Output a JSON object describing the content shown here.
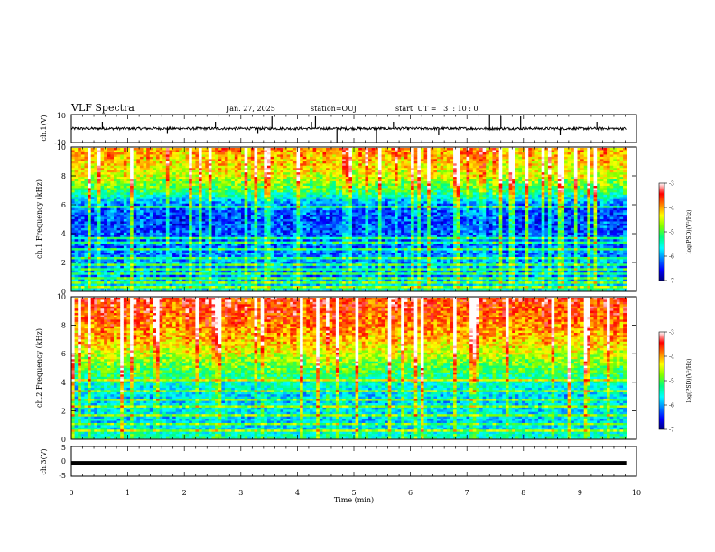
{
  "header": {
    "title": "VLF Spectra",
    "date": "Jan. 27, 2025",
    "station": "station=OUJ",
    "start_ut": "start  UT =   3  : 10 : 0"
  },
  "chart_data": [
    {
      "type": "line",
      "name": "ch1-waveform",
      "ylabel": "ch.1(V)",
      "xlim": [
        0,
        10
      ],
      "ylim": [
        -10,
        10
      ],
      "yticks": [
        "10",
        "-10"
      ],
      "baseline": 0,
      "noise_amplitude": 1,
      "spikes": [
        {
          "t": 0.55,
          "v": 5
        },
        {
          "t": 1.7,
          "v": -4
        },
        {
          "t": 2.55,
          "v": 5
        },
        {
          "t": 3.3,
          "v": -4
        },
        {
          "t": 3.55,
          "v": 9
        },
        {
          "t": 4.25,
          "v": 5
        },
        {
          "t": 4.32,
          "v": 9
        },
        {
          "t": 4.7,
          "v": -10
        },
        {
          "t": 5.4,
          "v": -10
        },
        {
          "t": 5.7,
          "v": 5
        },
        {
          "t": 6.5,
          "v": -5
        },
        {
          "t": 7.4,
          "v": 10
        },
        {
          "t": 7.6,
          "v": 9
        },
        {
          "t": 7.95,
          "v": 9
        },
        {
          "t": 8.65,
          "v": -5
        },
        {
          "t": 9.3,
          "v": 5
        }
      ],
      "data_end": 9.82
    },
    {
      "type": "heatmap",
      "name": "ch1-spectrogram",
      "ylabel": "ch.1 Frequency (kHz)",
      "xlim": [
        0,
        10
      ],
      "ylim": [
        0,
        10
      ],
      "yticks": [
        "0",
        "2",
        "4",
        "6",
        "8",
        "10"
      ],
      "colorbar_label": "log(PSD)(V²/Hz)",
      "colorbar_range": [
        -7,
        -3
      ],
      "colorbar_ticks": [
        "-3",
        "-4",
        "-5",
        "-6",
        "-7"
      ],
      "colormap": [
        "#000080",
        "#0000ff",
        "#0080ff",
        "#00ffff",
        "#00ff80",
        "#80ff00",
        "#ffff00",
        "#ff8000",
        "#ff0000",
        "#ffffff"
      ],
      "band_profile_khz": [
        0,
        1,
        2,
        3,
        4,
        5,
        6,
        7,
        8,
        9,
        10
      ],
      "band_profile_log_psd": [
        -5.6,
        -6.2,
        -6.1,
        -6.3,
        -6.4,
        -6.5,
        -6.3,
        -5.3,
        -4.7,
        -4.4,
        -4.2
      ],
      "tones_khz": [
        0.3,
        0.6,
        0.9,
        1.2,
        1.5,
        1.8,
        2.3,
        2.9,
        3.3,
        3.7,
        5.8
      ],
      "data_end": 9.82
    },
    {
      "type": "heatmap",
      "name": "ch2-spectrogram",
      "ylabel": "ch.2 Frequency (kHz)",
      "xlim": [
        0,
        10
      ],
      "ylim": [
        0,
        10
      ],
      "yticks": [
        "0",
        "2",
        "4",
        "6",
        "8",
        "10"
      ],
      "colorbar_label": "log(PSD)(V²/Hz)",
      "colorbar_range": [
        -7,
        -3
      ],
      "colorbar_ticks": [
        "-3",
        "-4",
        "-5",
        "-6",
        "-7"
      ],
      "colormap": [
        "#000080",
        "#0000ff",
        "#0080ff",
        "#00ffff",
        "#00ff80",
        "#80ff00",
        "#ffff00",
        "#ff8000",
        "#ff0000",
        "#ffffff"
      ],
      "band_profile_khz": [
        0,
        1,
        2,
        3,
        4,
        5,
        6,
        7,
        8,
        9,
        10
      ],
      "band_profile_log_psd": [
        -5.4,
        -5.9,
        -5.8,
        -5.9,
        -5.6,
        -5.1,
        -4.7,
        -4.3,
        -4.1,
        -3.9,
        -3.8
      ],
      "tones_khz": [
        0.5,
        1.0,
        1.6,
        2.2,
        2.8,
        3.4,
        4.1
      ],
      "data_end": 9.82
    },
    {
      "type": "line",
      "name": "ch3-waveform",
      "ylabel": "ch.3(V)",
      "xlim": [
        0,
        10
      ],
      "ylim": [
        -5,
        5
      ],
      "yticks": [
        "5",
        "0",
        "-5"
      ],
      "value": -0.5,
      "data_end": 9.82,
      "xlabel": "Time (min)",
      "xticks": [
        "0",
        "1",
        "2",
        "3",
        "4",
        "5",
        "6",
        "7",
        "8",
        "9",
        "10"
      ]
    }
  ]
}
